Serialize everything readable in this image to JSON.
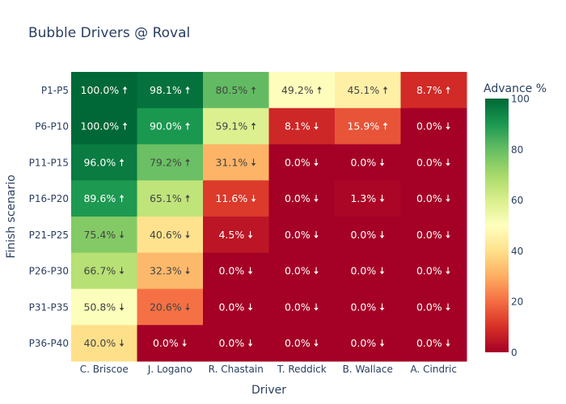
{
  "chart_data": {
    "type": "heatmap",
    "title": "Bubble Drivers @ Roval",
    "xlabel": "Driver",
    "ylabel": "Finish scenario",
    "x": [
      "C. Briscoe",
      "J. Logano",
      "R. Chastain",
      "T. Reddick",
      "B. Wallace",
      "A. Cindric"
    ],
    "y": [
      "P1-P5",
      "P6-P10",
      "P11-P15",
      "P16-P20",
      "P21-P25",
      "P26-P30",
      "P31-P35",
      "P36-P40"
    ],
    "values": [
      [
        100.0,
        98.1,
        80.5,
        49.2,
        45.1,
        8.7
      ],
      [
        100.0,
        90.0,
        59.1,
        8.1,
        15.9,
        0.0
      ],
      [
        96.0,
        79.2,
        31.1,
        0.0,
        0.0,
        0.0
      ],
      [
        89.6,
        65.1,
        11.6,
        0.0,
        1.3,
        0.0
      ],
      [
        75.4,
        40.6,
        4.5,
        0.0,
        0.0,
        0.0
      ],
      [
        66.7,
        32.3,
        0.0,
        0.0,
        0.0,
        0.0
      ],
      [
        50.8,
        20.6,
        0.0,
        0.0,
        0.0,
        0.0
      ],
      [
        40.0,
        0.0,
        0.0,
        0.0,
        0.0,
        0.0
      ]
    ],
    "arrows": [
      [
        "up",
        "up",
        "up",
        "up",
        "up",
        "up"
      ],
      [
        "up",
        "up",
        "up",
        "down",
        "up",
        "down"
      ],
      [
        "up",
        "up",
        "down",
        "down",
        "down",
        "down"
      ],
      [
        "up",
        "up",
        "down",
        "down",
        "down",
        "down"
      ],
      [
        "down",
        "down",
        "down",
        "down",
        "down",
        "down"
      ],
      [
        "down",
        "down",
        "down",
        "down",
        "down",
        "down"
      ],
      [
        "down",
        "down",
        "down",
        "down",
        "down",
        "down"
      ],
      [
        "down",
        "down",
        "down",
        "down",
        "down",
        "down"
      ]
    ],
    "arrow_glyphs": {
      "up": "🠅",
      "down": "🠇"
    },
    "label_suffix": "%",
    "colorscale": "RdYlGn",
    "colorscale_stops": [
      "#a50026",
      "#d73027",
      "#f46d43",
      "#fdae61",
      "#fee08b",
      "#ffffbf",
      "#d9ef8b",
      "#a6d96a",
      "#66bd63",
      "#1a9850",
      "#006837"
    ],
    "zlim": [
      0,
      100
    ],
    "colorbar": {
      "title": "Advance %",
      "ticks": [
        0,
        20,
        40,
        60,
        80,
        100
      ]
    },
    "text_colors": {
      "dark": "#444444",
      "light": "#ffffff"
    }
  }
}
